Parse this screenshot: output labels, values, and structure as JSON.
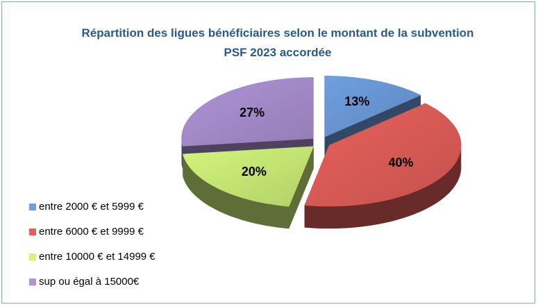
{
  "chart_data": {
    "type": "pie",
    "title": "Répartition des ligues bénéficiaires selon le montant de la subvention PSF 2023 accordée",
    "categories": [
      "entre 2000 € et 5999 €",
      "entre 6000 € et 9999 €",
      "entre 10000 € et 14999 €",
      "sup ou égal à 15000€"
    ],
    "values": [
      13,
      40,
      20,
      27
    ],
    "value_labels": [
      "13%",
      "40%",
      "20%",
      "27%"
    ],
    "colors": [
      "#6f9fe0",
      "#e8605c",
      "#d2f57a",
      "#ae93d6"
    ],
    "legend": "left"
  }
}
